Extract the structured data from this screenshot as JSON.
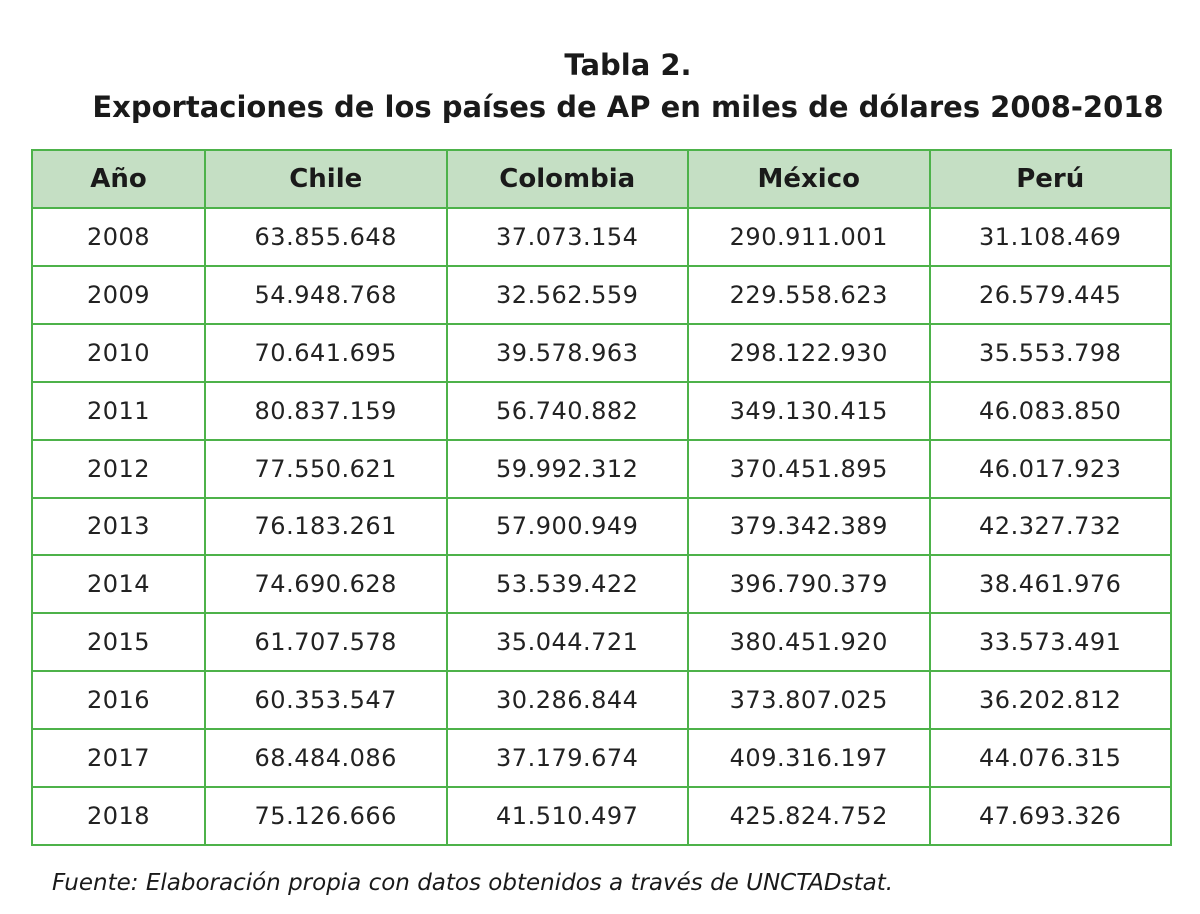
{
  "title": {
    "line1": "Tabla 2.",
    "line2": "Exportaciones de los países de AP en miles de dólares 2008-2018"
  },
  "table": {
    "headers": [
      "Año",
      "Chile",
      "Colombia",
      "México",
      "Perú"
    ],
    "rows": [
      [
        "2008",
        "63.855.648",
        "37.073.154",
        "290.911.001",
        "31.108.469"
      ],
      [
        "2009",
        "54.948.768",
        "32.562.559",
        "229.558.623",
        "26.579.445"
      ],
      [
        "2010",
        "70.641.695",
        "39.578.963",
        "298.122.930",
        "35.553.798"
      ],
      [
        "2011",
        "80.837.159",
        "56.740.882",
        "349.130.415",
        "46.083.850"
      ],
      [
        "2012",
        "77.550.621",
        "59.992.312",
        "370.451.895",
        "46.017.923"
      ],
      [
        "2013",
        "76.183.261",
        "57.900.949",
        "379.342.389",
        "42.327.732"
      ],
      [
        "2014",
        "74.690.628",
        "53.539.422",
        "396.790.379",
        "38.461.976"
      ],
      [
        "2015",
        "61.707.578",
        "35.044.721",
        "380.451.920",
        "33.573.491"
      ],
      [
        "2016",
        "60.353.547",
        "30.286.844",
        "373.807.025",
        "36.202.812"
      ],
      [
        "2017",
        "68.484.086",
        "37.179.674",
        "409.316.197",
        "44.076.315"
      ],
      [
        "2018",
        "75.126.666",
        "41.510.497",
        "425.824.752",
        "47.693.326"
      ]
    ]
  },
  "source": "Fuente: Elaboración propia con datos obtenidos a través de UNCTADstat.",
  "colors": {
    "border": "#4db24a",
    "header_bg": "#c5dfc4"
  }
}
